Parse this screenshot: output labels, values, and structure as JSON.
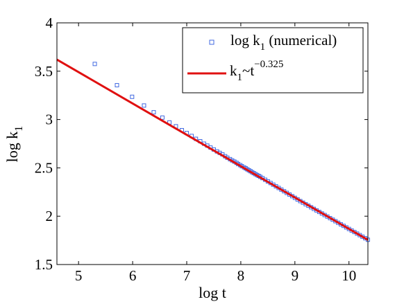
{
  "chart_data": {
    "type": "scatter",
    "xlabel": "log t",
    "ylabel": {
      "main": "log k",
      "sub": "1"
    },
    "xlim": [
      4.6,
      10.35
    ],
    "ylim": [
      1.5,
      4.0
    ],
    "xticks": [
      "5",
      "6",
      "7",
      "8",
      "9",
      "10"
    ],
    "yticks": [
      "1.5",
      "2",
      "2.5",
      "3",
      "3.5",
      "4"
    ],
    "grid": false,
    "legend_placement": "top-right",
    "series": [
      {
        "name": "log k₁ (numerical)",
        "legend_label": {
          "main": "log k",
          "sub": "1",
          "suffix": " (numerical)"
        },
        "kind": "scatter",
        "marker": "square",
        "color": "#4169e1",
        "x": [
          5.3,
          5.71,
          5.99,
          6.21,
          6.39,
          6.55,
          6.68,
          6.8,
          6.91,
          7.0,
          7.09,
          7.17,
          7.25,
          7.32,
          7.38,
          7.44,
          7.5,
          7.56,
          7.61,
          7.66,
          7.71,
          7.75,
          7.8,
          7.84,
          7.88,
          7.92,
          7.95,
          7.99,
          8.02,
          8.06,
          8.09,
          8.12,
          8.15,
          8.18,
          8.21,
          8.24,
          8.27,
          8.3,
          8.33,
          8.36,
          8.4,
          8.45,
          8.5,
          8.55,
          8.6,
          8.65,
          8.7,
          8.75,
          8.8,
          8.85,
          8.9,
          8.95,
          9.0,
          9.05,
          9.1,
          9.15,
          9.2,
          9.25,
          9.3,
          9.35,
          9.4,
          9.45,
          9.5,
          9.55,
          9.6,
          9.65,
          9.7,
          9.75,
          9.8,
          9.85,
          9.9,
          9.95,
          10.0,
          10.05,
          10.1,
          10.15,
          10.2,
          10.25,
          10.3,
          10.35
        ],
        "y": [
          3.575,
          3.355,
          3.235,
          3.145,
          3.075,
          3.02,
          2.97,
          2.93,
          2.89,
          2.86,
          2.83,
          2.8,
          2.775,
          2.75,
          2.73,
          2.71,
          2.69,
          2.67,
          2.655,
          2.64,
          2.62,
          2.605,
          2.59,
          2.577,
          2.565,
          2.552,
          2.54,
          2.528,
          2.517,
          2.505,
          2.495,
          2.485,
          2.475,
          2.465,
          2.455,
          2.445,
          2.435,
          2.426,
          2.417,
          2.407,
          2.394,
          2.377,
          2.36,
          2.343,
          2.326,
          2.309,
          2.292,
          2.275,
          2.258,
          2.241,
          2.224,
          2.207,
          2.19,
          2.173,
          2.156,
          2.14,
          2.124,
          2.108,
          2.092,
          2.076,
          2.06,
          2.044,
          2.028,
          2.012,
          1.996,
          1.98,
          1.964,
          1.948,
          1.932,
          1.916,
          1.9,
          1.884,
          1.868,
          1.852,
          1.836,
          1.82,
          1.804,
          1.788,
          1.772,
          1.756
        ]
      },
      {
        "name": "k₁~t^−0.325",
        "legend_label": {
          "main": "k",
          "sub": "1",
          "mid": "~t",
          "sup": "−0.325"
        },
        "kind": "line",
        "color": "#e01010",
        "x": [
          4.6,
          10.35
        ],
        "y": [
          3.62,
          1.755
        ]
      }
    ]
  }
}
